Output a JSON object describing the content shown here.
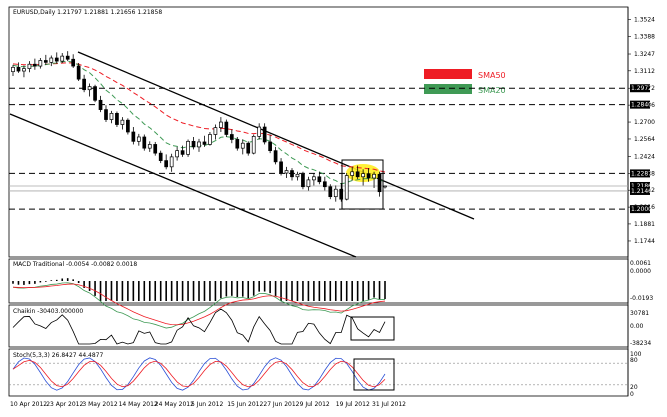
{
  "chart_data": [
    {
      "type": "candlestick",
      "title": "EURUSD,Daily  1.21797 1.21881 1.21656 1.21858",
      "ylim": [
        1.1615,
        1.3625
      ],
      "price_ticks": [
        1.3524,
        1.3388,
        1.3247,
        1.3112,
        1.2972,
        1.2836,
        1.27,
        1.2564,
        1.2424,
        1.2288,
        1.2152,
        1.2016,
        1.1881,
        1.1744
      ],
      "boxed_labels": [
        "1.2972",
        "1.2840",
        "1.2287",
        "1.2186",
        "1.2146",
        "1.2000"
      ],
      "dashed_levels": [
        1.2972,
        1.284,
        1.2287,
        1.2
      ],
      "solid_levels": [
        1.2186,
        1.2146
      ],
      "x_labels": [
        "10 Apr 2012",
        "23 Apr 2012",
        "3 May 2012",
        "14 May 2012",
        "24 May 2012",
        "5 Jun 2012",
        "15 Jun 2012",
        "27 Jun 2012",
        "9 Jul 2012",
        "19 Jul 2012",
        "31 Jul 2012"
      ],
      "legend": [
        {
          "label": "SMA50",
          "color": "#ee1c24"
        },
        {
          "label": "SMA20",
          "color": "#3f9a55"
        }
      ],
      "candles": [
        {
          "o": 1.3105,
          "h": 1.316,
          "l": 1.307,
          "c": 1.314
        },
        {
          "o": 1.314,
          "h": 1.318,
          "l": 1.3095,
          "c": 1.311
        },
        {
          "o": 1.311,
          "h": 1.3155,
          "l": 1.306,
          "c": 1.313
        },
        {
          "o": 1.313,
          "h": 1.319,
          "l": 1.31,
          "c": 1.3165
        },
        {
          "o": 1.3165,
          "h": 1.321,
          "l": 1.312,
          "c": 1.315
        },
        {
          "o": 1.315,
          "h": 1.3215,
          "l": 1.313,
          "c": 1.3195
        },
        {
          "o": 1.3195,
          "h": 1.324,
          "l": 1.316,
          "c": 1.318
        },
        {
          "o": 1.318,
          "h": 1.3235,
          "l": 1.315,
          "c": 1.3215
        },
        {
          "o": 1.3215,
          "h": 1.326,
          "l": 1.317,
          "c": 1.319
        },
        {
          "o": 1.319,
          "h": 1.3255,
          "l": 1.3175,
          "c": 1.323
        },
        {
          "o": 1.323,
          "h": 1.327,
          "l": 1.319,
          "c": 1.3205
        },
        {
          "o": 1.3205,
          "h": 1.3245,
          "l": 1.3135,
          "c": 1.315
        },
        {
          "o": 1.315,
          "h": 1.3175,
          "l": 1.303,
          "c": 1.3045
        },
        {
          "o": 1.3045,
          "h": 1.308,
          "l": 1.294,
          "c": 1.296
        },
        {
          "o": 1.296,
          "h": 1.301,
          "l": 1.2905,
          "c": 1.2985
        },
        {
          "o": 1.2985,
          "h": 1.3,
          "l": 1.286,
          "c": 1.2875
        },
        {
          "o": 1.2875,
          "h": 1.291,
          "l": 1.278,
          "c": 1.28
        },
        {
          "o": 1.28,
          "h": 1.2835,
          "l": 1.27,
          "c": 1.272
        },
        {
          "o": 1.272,
          "h": 1.279,
          "l": 1.269,
          "c": 1.277
        },
        {
          "o": 1.277,
          "h": 1.2785,
          "l": 1.266,
          "c": 1.268
        },
        {
          "o": 1.268,
          "h": 1.274,
          "l": 1.264,
          "c": 1.2715
        },
        {
          "o": 1.2715,
          "h": 1.273,
          "l": 1.26,
          "c": 1.262
        },
        {
          "o": 1.262,
          "h": 1.266,
          "l": 1.252,
          "c": 1.2545
        },
        {
          "o": 1.2545,
          "h": 1.2605,
          "l": 1.251,
          "c": 1.258
        },
        {
          "o": 1.258,
          "h": 1.26,
          "l": 1.247,
          "c": 1.249
        },
        {
          "o": 1.249,
          "h": 1.2545,
          "l": 1.246,
          "c": 1.252
        },
        {
          "o": 1.252,
          "h": 1.254,
          "l": 1.243,
          "c": 1.245
        },
        {
          "o": 1.245,
          "h": 1.247,
          "l": 1.237,
          "c": 1.239
        },
        {
          "o": 1.239,
          "h": 1.244,
          "l": 1.232,
          "c": 1.234
        },
        {
          "o": 1.234,
          "h": 1.2445,
          "l": 1.23,
          "c": 1.242
        },
        {
          "o": 1.242,
          "h": 1.25,
          "l": 1.239,
          "c": 1.247
        },
        {
          "o": 1.247,
          "h": 1.251,
          "l": 1.242,
          "c": 1.244
        },
        {
          "o": 1.244,
          "h": 1.256,
          "l": 1.242,
          "c": 1.2545
        },
        {
          "o": 1.2545,
          "h": 1.258,
          "l": 1.248,
          "c": 1.25
        },
        {
          "o": 1.25,
          "h": 1.2565,
          "l": 1.246,
          "c": 1.254
        },
        {
          "o": 1.254,
          "h": 1.259,
          "l": 1.25,
          "c": 1.252
        },
        {
          "o": 1.252,
          "h": 1.262,
          "l": 1.251,
          "c": 1.26
        },
        {
          "o": 1.26,
          "h": 1.268,
          "l": 1.256,
          "c": 1.2655
        },
        {
          "o": 1.2655,
          "h": 1.274,
          "l": 1.262,
          "c": 1.27
        },
        {
          "o": 1.27,
          "h": 1.272,
          "l": 1.258,
          "c": 1.26
        },
        {
          "o": 1.26,
          "h": 1.264,
          "l": 1.253,
          "c": 1.256
        },
        {
          "o": 1.256,
          "h": 1.258,
          "l": 1.247,
          "c": 1.249
        },
        {
          "o": 1.249,
          "h": 1.256,
          "l": 1.244,
          "c": 1.253
        },
        {
          "o": 1.253,
          "h": 1.2545,
          "l": 1.243,
          "c": 1.245
        },
        {
          "o": 1.245,
          "h": 1.26,
          "l": 1.244,
          "c": 1.2585
        },
        {
          "o": 1.2585,
          "h": 1.269,
          "l": 1.256,
          "c": 1.266
        },
        {
          "o": 1.266,
          "h": 1.269,
          "l": 1.252,
          "c": 1.254
        },
        {
          "o": 1.254,
          "h": 1.26,
          "l": 1.245,
          "c": 1.247
        },
        {
          "o": 1.247,
          "h": 1.25,
          "l": 1.236,
          "c": 1.238
        },
        {
          "o": 1.238,
          "h": 1.241,
          "l": 1.227,
          "c": 1.229
        },
        {
          "o": 1.229,
          "h": 1.234,
          "l": 1.225,
          "c": 1.231
        },
        {
          "o": 1.231,
          "h": 1.233,
          "l": 1.223,
          "c": 1.226
        },
        {
          "o": 1.226,
          "h": 1.23,
          "l": 1.223,
          "c": 1.228
        },
        {
          "o": 1.228,
          "h": 1.23,
          "l": 1.216,
          "c": 1.218
        },
        {
          "o": 1.218,
          "h": 1.226,
          "l": 1.215,
          "c": 1.2235
        },
        {
          "o": 1.2235,
          "h": 1.229,
          "l": 1.219,
          "c": 1.226
        },
        {
          "o": 1.226,
          "h": 1.23,
          "l": 1.22,
          "c": 1.222
        },
        {
          "o": 1.222,
          "h": 1.226,
          "l": 1.215,
          "c": 1.218
        },
        {
          "o": 1.218,
          "h": 1.22,
          "l": 1.208,
          "c": 1.21
        },
        {
          "o": 1.21,
          "h": 1.219,
          "l": 1.206,
          "c": 1.216
        },
        {
          "o": 1.216,
          "h": 1.221,
          "l": 1.206,
          "c": 1.208
        },
        {
          "o": 1.208,
          "h": 1.229,
          "l": 1.207,
          "c": 1.227
        },
        {
          "o": 1.227,
          "h": 1.234,
          "l": 1.223,
          "c": 1.23
        },
        {
          "o": 1.23,
          "h": 1.235,
          "l": 1.224,
          "c": 1.226
        },
        {
          "o": 1.226,
          "h": 1.232,
          "l": 1.219,
          "c": 1.2285
        },
        {
          "o": 1.2285,
          "h": 1.233,
          "l": 1.222,
          "c": 1.225
        },
        {
          "o": 1.225,
          "h": 1.23,
          "l": 1.217,
          "c": 1.228
        },
        {
          "o": 1.228,
          "h": 1.23,
          "l": 1.21,
          "c": 1.214
        },
        {
          "o": 1.218,
          "h": 1.219,
          "l": 1.2166,
          "c": 1.2186
        }
      ],
      "panes": [
        {
          "title": "MACD Traditional -0.0054 -0.0082 0.0018",
          "ticks": [
            "0.0061",
            "0.0000",
            "-0.0193"
          ]
        },
        {
          "title": "Chaikin -30403.000000",
          "ticks": [
            "30781",
            "0.00",
            "-38234"
          ]
        },
        {
          "title": "Stoch(5,3,3) 26.8427 44.4877",
          "ticks": [
            "100",
            "80",
            "20",
            "0"
          ]
        }
      ]
    }
  ]
}
